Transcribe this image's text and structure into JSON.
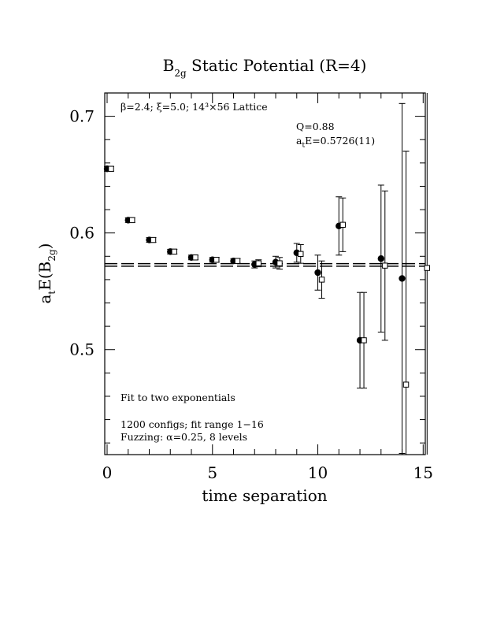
{
  "chart_data": {
    "type": "scatter",
    "title": {
      "base": "B",
      "sub": "2g",
      "rest": " Static Potential (R=4)"
    },
    "xlabel": "time separation",
    "ylabel": {
      "base": "a",
      "sub1": "t",
      "mid": "E(B",
      "sub2": "2g",
      "end": ")"
    },
    "xlim": [
      0,
      15
    ],
    "ylim": [
      0.41,
      0.72
    ],
    "x_ticks": [
      0,
      5,
      10,
      15
    ],
    "y_ticks": [
      0.5,
      0.6,
      0.7
    ],
    "annotations": {
      "lattice": "β=2.4; ξ=5.0; 14³×56 Lattice",
      "q_value": "Q=0.88",
      "energy": {
        "base": "a",
        "sub": "t",
        "rest": "E=0.5726(11)"
      },
      "fit_note": "Fit to two exponentials",
      "configs": "1200 configs; fit range 1−16",
      "fuzzing": "Fuzzing: α=0.25, 8 levels"
    },
    "fit": {
      "value": 0.5726,
      "error": 0.0011
    },
    "series": [
      {
        "marker": "filled-circle",
        "points": [
          {
            "x": 0,
            "y": 0.655,
            "err": 0.002
          },
          {
            "x": 1,
            "y": 0.611,
            "err": 0.002
          },
          {
            "x": 2,
            "y": 0.594,
            "err": 0.002
          },
          {
            "x": 3,
            "y": 0.584,
            "err": 0.002
          },
          {
            "x": 4,
            "y": 0.579,
            "err": 0.002
          },
          {
            "x": 5,
            "y": 0.577,
            "err": 0.002
          },
          {
            "x": 6,
            "y": 0.576,
            "err": 0.002
          },
          {
            "x": 7,
            "y": 0.573,
            "err": 0.003
          },
          {
            "x": 8,
            "y": 0.575,
            "err": 0.005
          },
          {
            "x": 9,
            "y": 0.583,
            "err": 0.008
          },
          {
            "x": 10,
            "y": 0.566,
            "err": 0.015
          },
          {
            "x": 11,
            "y": 0.606,
            "err": 0.025
          },
          {
            "x": 12,
            "y": 0.508,
            "err": 0.041
          },
          {
            "x": 13,
            "y": 0.578,
            "err": 0.063
          },
          {
            "x": 14,
            "y": 0.561,
            "err": 0.15
          }
        ]
      },
      {
        "marker": "open-square",
        "points": [
          {
            "x": 0,
            "y": 0.655,
            "err": 0.002
          },
          {
            "x": 1,
            "y": 0.611,
            "err": 0.002
          },
          {
            "x": 2,
            "y": 0.594,
            "err": 0.002
          },
          {
            "x": 3,
            "y": 0.584,
            "err": 0.002
          },
          {
            "x": 4,
            "y": 0.579,
            "err": 0.002
          },
          {
            "x": 5,
            "y": 0.577,
            "err": 0.002
          },
          {
            "x": 6,
            "y": 0.576,
            "err": 0.002
          },
          {
            "x": 7,
            "y": 0.574,
            "err": 0.003
          },
          {
            "x": 8,
            "y": 0.574,
            "err": 0.005
          },
          {
            "x": 9,
            "y": 0.582,
            "err": 0.008
          },
          {
            "x": 10,
            "y": 0.56,
            "err": 0.016
          },
          {
            "x": 11,
            "y": 0.607,
            "err": 0.023
          },
          {
            "x": 12,
            "y": 0.508,
            "err": 0.041
          },
          {
            "x": 13,
            "y": 0.572,
            "err": 0.064
          },
          {
            "x": 14,
            "y": 0.47,
            "err": 0.2
          },
          {
            "x": 15,
            "y": 0.57,
            "err": 0.2
          }
        ]
      }
    ]
  }
}
